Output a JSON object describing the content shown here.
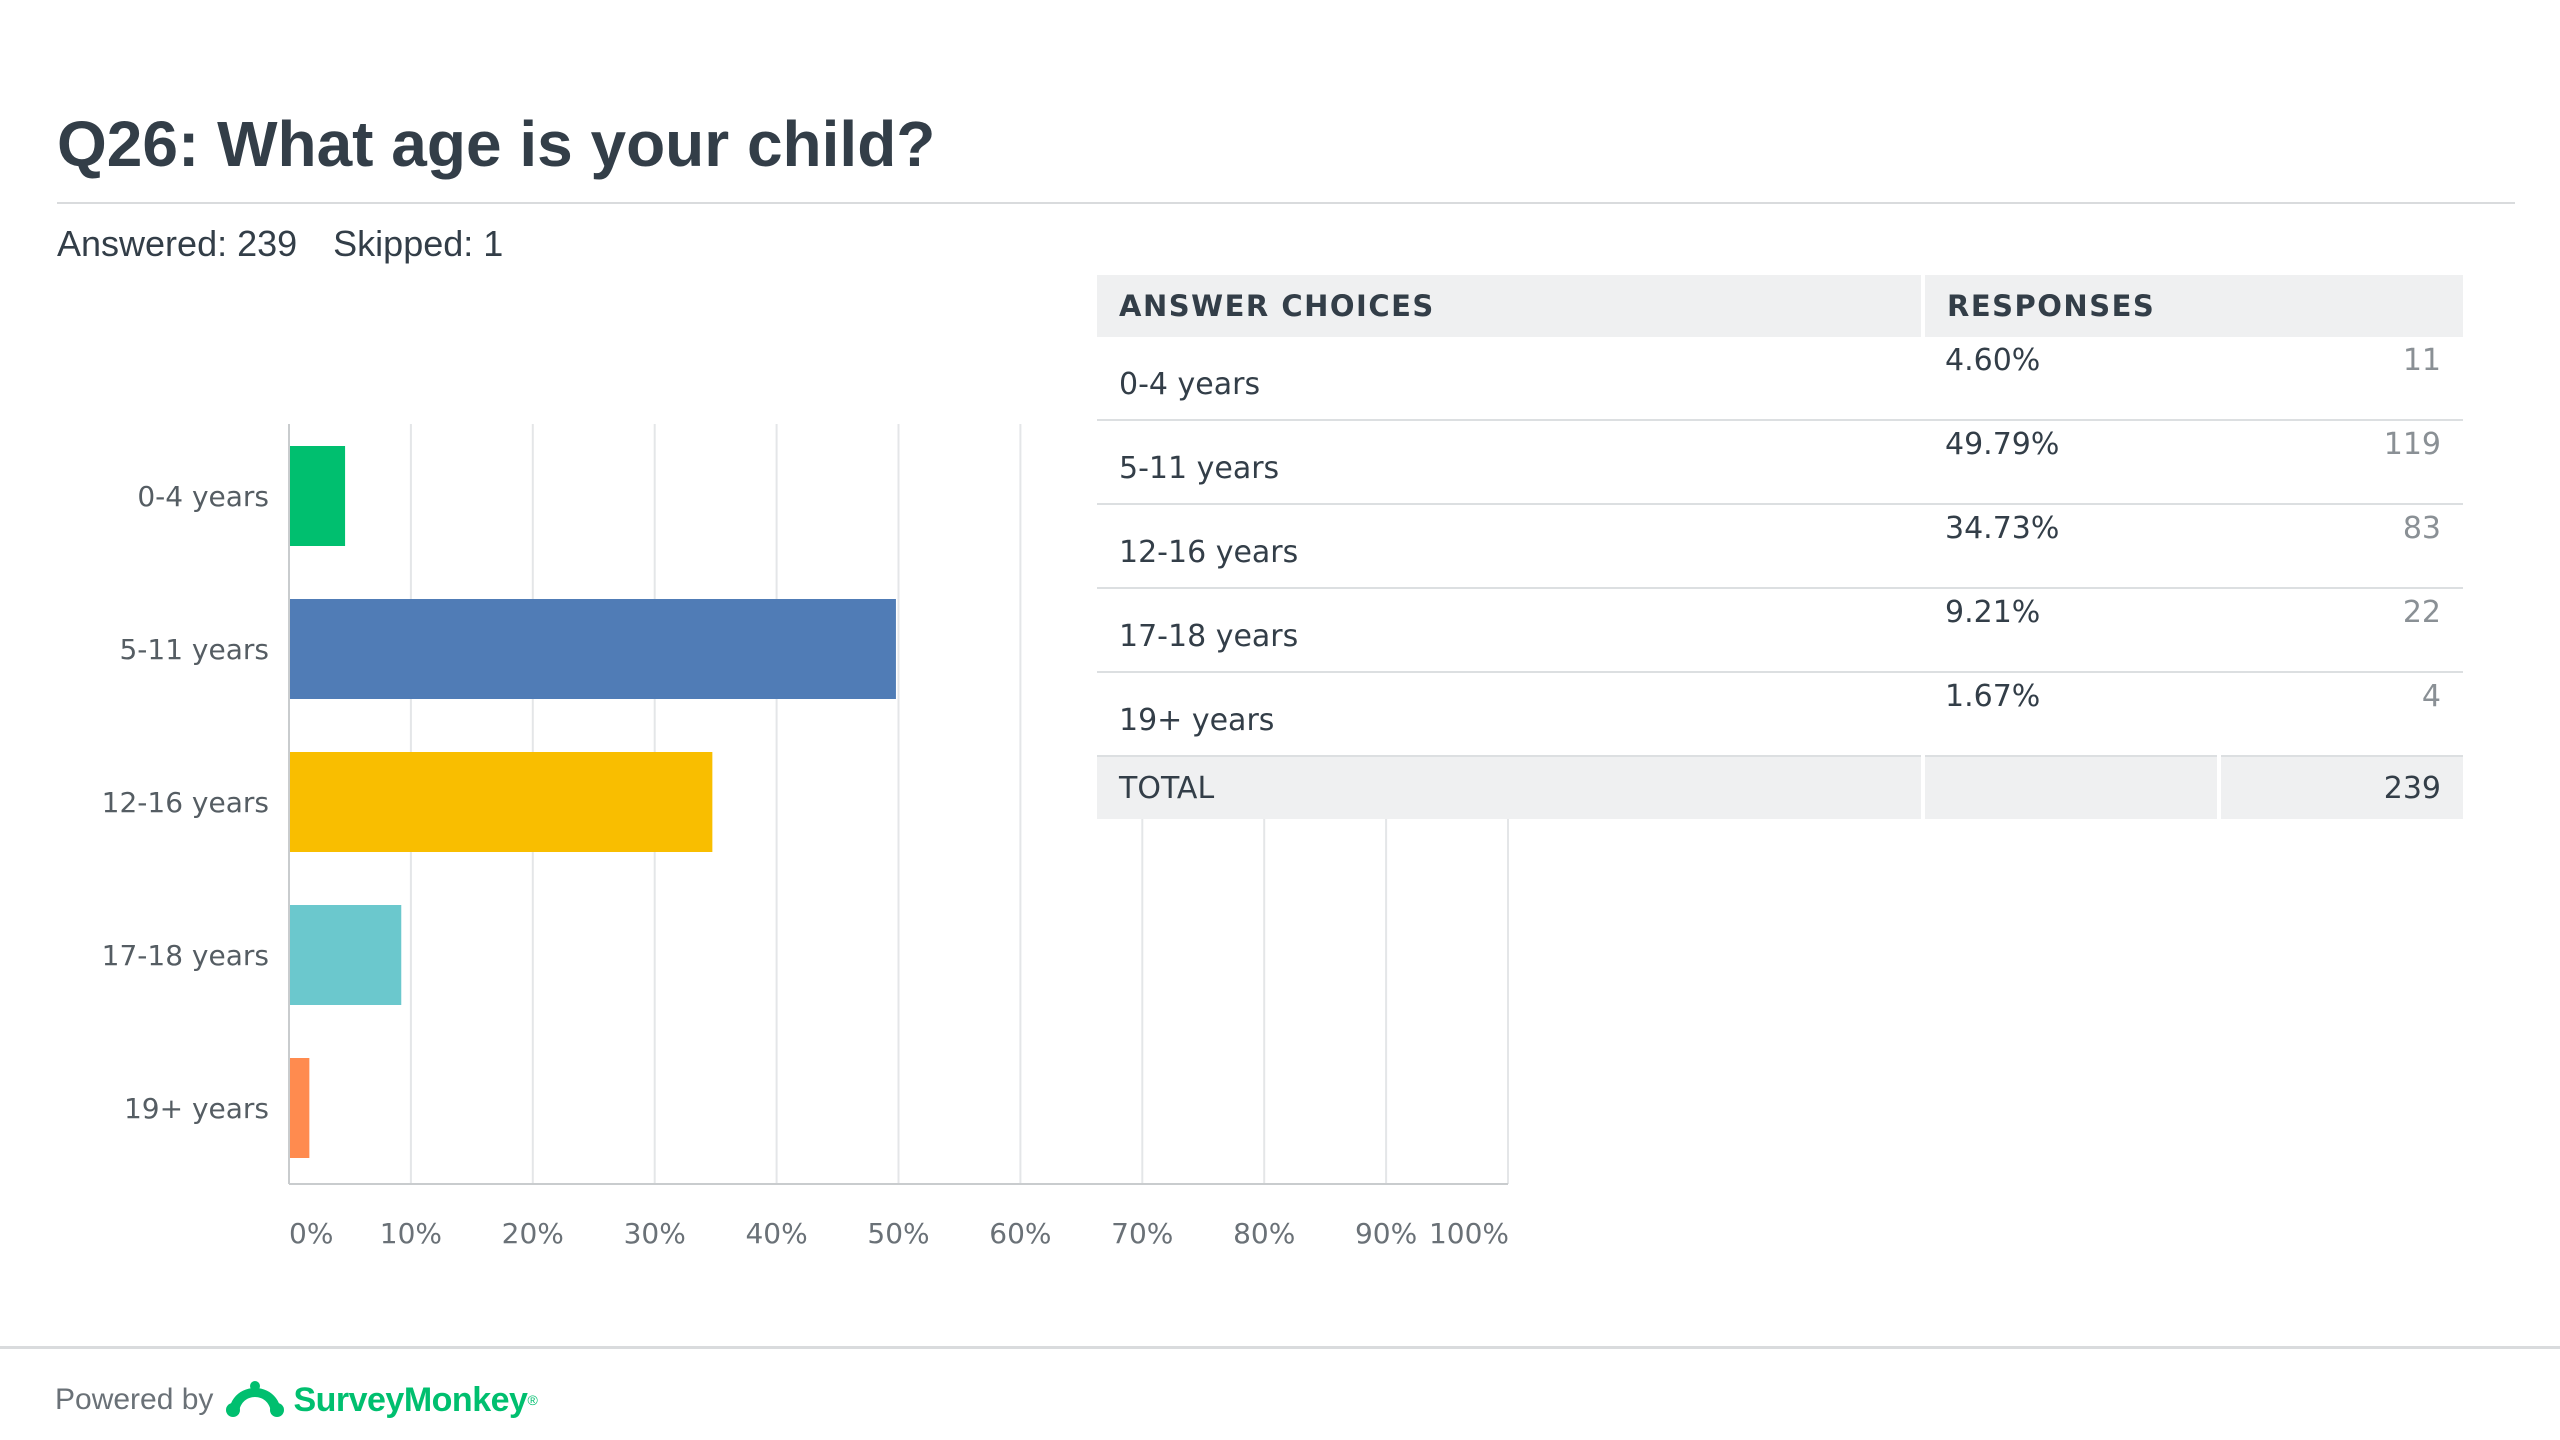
{
  "question": {
    "title": "Q26: What age is your child?",
    "answered_label": "Answered: 239",
    "skipped_label": "Skipped: 1"
  },
  "chart_data": {
    "type": "bar",
    "orientation": "horizontal",
    "categories": [
      "0-4 years",
      "5-11 years",
      "12-16 years",
      "17-18 years",
      "19+ years"
    ],
    "values": [
      4.6,
      49.79,
      34.73,
      9.21,
      1.67
    ],
    "colors": [
      "#00bf6f",
      "#507cb6",
      "#f9be00",
      "#6bc8cd",
      "#ff8b4f"
    ],
    "xticks": [
      "0%",
      "10%",
      "20%",
      "30%",
      "40%",
      "50%",
      "60%",
      "70%",
      "80%",
      "90%",
      "100%"
    ],
    "xlim": [
      0,
      100
    ],
    "grid": true
  },
  "table": {
    "headers": {
      "choices": "ANSWER CHOICES",
      "responses": "RESPONSES"
    },
    "rows": [
      {
        "choice": "0-4 years",
        "percent": "4.60%",
        "count": "11"
      },
      {
        "choice": "5-11 years",
        "percent": "49.79%",
        "count": "119"
      },
      {
        "choice": "12-16 years",
        "percent": "34.73%",
        "count": "83"
      },
      {
        "choice": "17-18 years",
        "percent": "9.21%",
        "count": "22"
      },
      {
        "choice": "19+ years",
        "percent": "1.67%",
        "count": "4"
      }
    ],
    "total": {
      "label": "TOTAL",
      "count": "239"
    }
  },
  "footer": {
    "powered_by": "Powered by",
    "brand": "SurveyMonkey",
    "brand_mark": "®",
    "brand_color": "#00bf6f"
  }
}
